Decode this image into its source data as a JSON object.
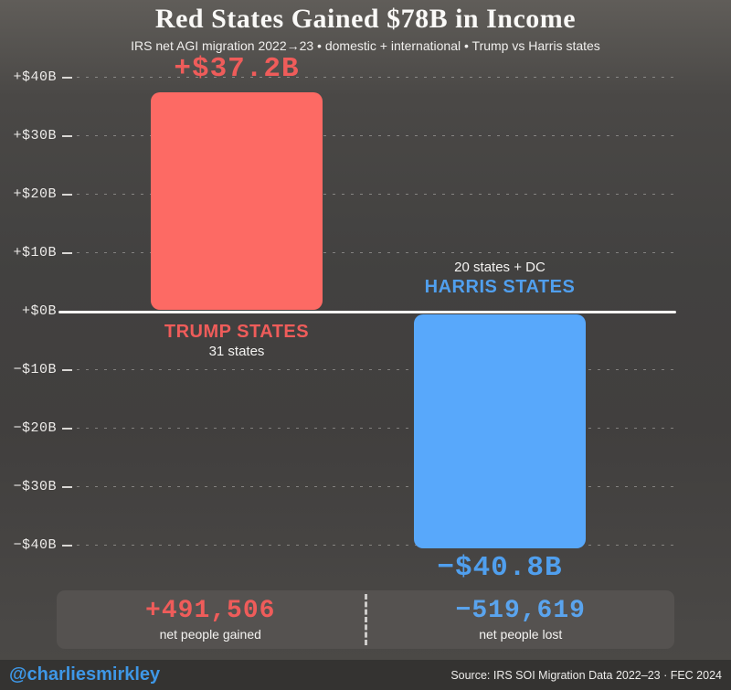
{
  "header": {
    "title": "Red States Gained $78B in Income",
    "subtitle": "IRS net AGI migration 2022→23 • domestic + international • Trump vs Harris states"
  },
  "chart_data": {
    "type": "bar",
    "title": "Red States Gained $78B in Income",
    "categories": [
      "TRUMP STATES",
      "HARRIS STATES"
    ],
    "values": [
      37.2,
      -40.8
    ],
    "unit": "billions of USD (net AGI migration)",
    "ylim": [
      -45,
      45
    ],
    "grid": "dotted horizontal",
    "yticks": [
      {
        "value": 40,
        "label": "+$40B"
      },
      {
        "value": 30,
        "label": "+$30B"
      },
      {
        "value": 20,
        "label": "+$20B"
      },
      {
        "value": 10,
        "label": "+$10B"
      },
      {
        "value": 0,
        "label": "+$0B"
      },
      {
        "value": -10,
        "label": "−$10B"
      },
      {
        "value": -20,
        "label": "−$20B"
      },
      {
        "value": -30,
        "label": "−$30B"
      },
      {
        "value": -40,
        "label": "−$40B"
      }
    ],
    "bars": [
      {
        "name": "trump",
        "value": 37.2,
        "value_label": "+$37.2B",
        "label": "TRUMP STATES",
        "sublabel": "31 states",
        "bar_color": "#fd6a64",
        "text_color": "#ef5c5a"
      },
      {
        "name": "harris",
        "value": -40.8,
        "value_label": "−$40.8B",
        "label": "HARRIS STATES",
        "sublabel": "20 states + DC",
        "bar_color": "#58a8fb",
        "text_color": "#509fee"
      }
    ]
  },
  "stats_panel": {
    "left": {
      "value": "+491,506",
      "label": "net people gained",
      "color": "#ef5c5a"
    },
    "right": {
      "value": "−519,619",
      "label": "net people lost",
      "color": "#5aa4ee"
    }
  },
  "footer": {
    "handle": "@charliesmirkley",
    "source": "Source: IRS SOI Migration Data 2022–23 · FEC 2024"
  },
  "colors": {
    "background": "#424140",
    "zero_line": "#f5f4f2",
    "red": "#fd6a64",
    "blue": "#58a8fb",
    "panel": "#555250",
    "footer_bar": "#343331"
  }
}
